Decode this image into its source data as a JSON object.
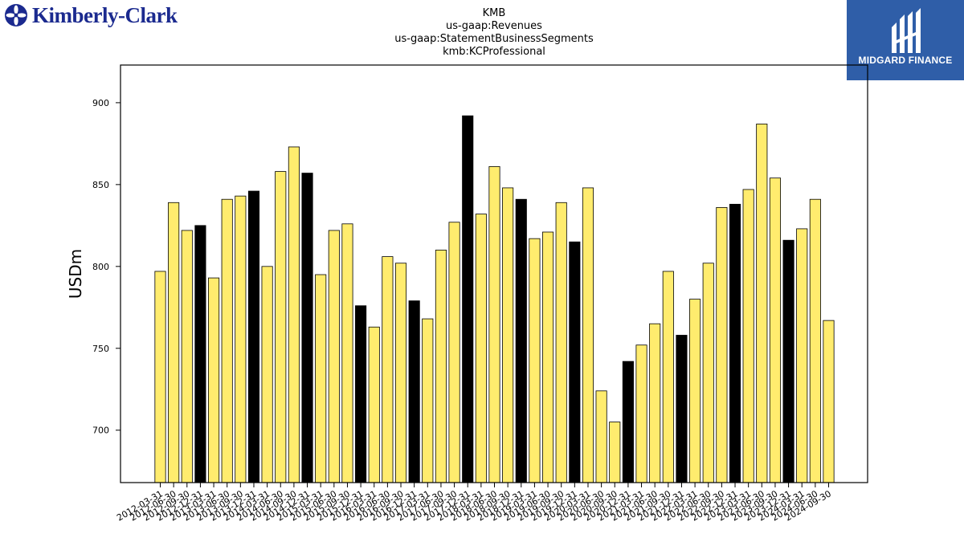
{
  "logos": {
    "left_text": "Kimberly-Clark",
    "right_text": "MIDGARD FINANCE"
  },
  "chart_data": {
    "type": "bar",
    "title_lines": [
      "KMB",
      "us-gaap:Revenues",
      "us-gaap:StatementBusinessSegments",
      "kmb:KCProfessional"
    ],
    "ylabel": "USDm",
    "xlabel": "",
    "ylim": [
      668,
      923
    ],
    "yticks": [
      700,
      750,
      800,
      850,
      900
    ],
    "grid": false,
    "colors": {
      "default": "#ffec6e",
      "highlight": "#000000",
      "edge": "#000000"
    },
    "categories": [
      "2012-03-31",
      "2012-06-30",
      "2012-09-30",
      "2012-12-31",
      "2013-03-31",
      "2013-06-30",
      "2013-09-30",
      "2013-12-31",
      "2014-03-31",
      "2014-06-30",
      "2014-09-30",
      "2014-12-31",
      "2015-03-31",
      "2015-06-30",
      "2015-09-30",
      "2015-12-31",
      "2016-03-31",
      "2016-06-30",
      "2016-09-30",
      "2016-12-31",
      "2017-03-31",
      "2017-06-30",
      "2017-09-30",
      "2017-12-31",
      "2018-03-31",
      "2018-06-30",
      "2018-09-30",
      "2018-12-31",
      "2019-03-31",
      "2019-06-30",
      "2019-09-30",
      "2019-12-31",
      "2020-03-31",
      "2020-06-30",
      "2020-09-30",
      "2020-12-31",
      "2021-03-31",
      "2021-06-30",
      "2021-09-30",
      "2021-12-31",
      "2022-03-31",
      "2022-06-30",
      "2022-09-30",
      "2022-12-31",
      "2023-03-31",
      "2023-06-30",
      "2023-09-30",
      "2023-12-31",
      "2024-03-31",
      "2024-06-30",
      "2024-09-30"
    ],
    "values": [
      797,
      839,
      822,
      825,
      793,
      841,
      843,
      846,
      800,
      858,
      873,
      857,
      795,
      822,
      826,
      776,
      763,
      806,
      802,
      779,
      768,
      810,
      827,
      892,
      832,
      861,
      848,
      841,
      817,
      821,
      839,
      815,
      848,
      724,
      705,
      742,
      752,
      765,
      797,
      758,
      780,
      802,
      836,
      838,
      847,
      887,
      854,
      816,
      823,
      841,
      767
    ],
    "highlight_index": [
      3,
      7,
      11,
      15,
      19,
      23,
      27,
      31,
      35,
      39,
      43,
      47
    ]
  }
}
